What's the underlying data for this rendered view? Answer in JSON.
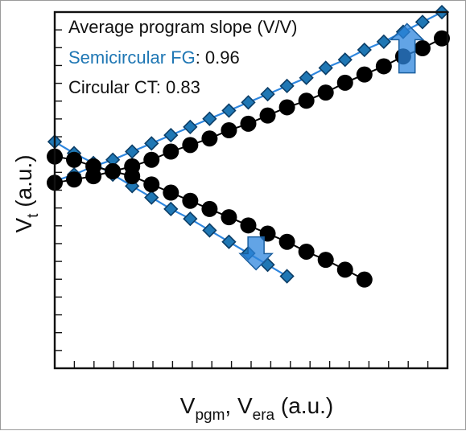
{
  "chart_data": {
    "type": "scatter",
    "x_range": [
      0,
      10
    ],
    "y_range": [
      0,
      10
    ],
    "annotation": {
      "title": "Average program slope (V/V)",
      "entries": [
        {
          "name": "Semicircular FG",
          "value": ": 0.96",
          "color": "#1f77b4"
        },
        {
          "name": "Circular CT",
          "value": ": 0.83",
          "color": "#111111"
        }
      ]
    },
    "ylabel": {
      "base": "V",
      "sub": "t",
      "rest": " (a.u.)"
    },
    "xlabel": {
      "base1": "V",
      "sub1": "pgm",
      "mid": ", V",
      "sub2": "era",
      "rest": " (a.u.)"
    },
    "series": [
      {
        "name": "Semicircular FG",
        "role": "program",
        "marker": "diamond",
        "color": "#1f77b4",
        "x": [
          0,
          0.5,
          1,
          1.5,
          2,
          2.5,
          3,
          3.5,
          4,
          4.5,
          5,
          5.5,
          6,
          6.5,
          7,
          7.5,
          8,
          8.5,
          9,
          9.5,
          10
        ],
        "y": [
          4.7,
          4.9,
          5.15,
          5.35,
          5.6,
          5.85,
          6.1,
          6.35,
          6.6,
          6.85,
          7.1,
          7.35,
          7.6,
          7.85,
          8.15,
          8.4,
          8.7,
          8.95,
          9.25,
          9.55,
          9.85
        ]
      },
      {
        "name": "Semicircular FG",
        "role": "erase",
        "marker": "diamond",
        "color": "#1f77b4",
        "x": [
          0,
          0.5,
          1,
          1.5,
          2,
          2.5,
          3,
          3.5,
          4,
          4.5,
          5,
          5.5,
          6
        ],
        "y": [
          5.9,
          5.55,
          5.25,
          4.9,
          4.55,
          4.2,
          3.85,
          3.55,
          3.2,
          2.85,
          2.5,
          2.15,
          1.8
        ]
      },
      {
        "name": "Circular CT",
        "role": "program",
        "marker": "circle",
        "color": "#000000",
        "x": [
          0,
          0.5,
          1,
          1.5,
          2,
          2.5,
          3,
          3.5,
          4,
          4.5,
          5,
          5.5,
          6,
          6.5,
          7,
          7.5,
          8,
          8.5,
          9,
          9.5,
          10
        ],
        "y": [
          4.65,
          4.75,
          4.85,
          5.0,
          5.15,
          5.35,
          5.6,
          5.8,
          6.0,
          6.25,
          6.45,
          6.7,
          6.95,
          7.15,
          7.4,
          7.7,
          7.95,
          8.2,
          8.5,
          8.75,
          9.05
        ]
      },
      {
        "name": "Circular CT",
        "role": "erase",
        "marker": "circle",
        "color": "#000000",
        "x": [
          0,
          0.5,
          1,
          1.5,
          2,
          2.5,
          3,
          3.5,
          4,
          4.5,
          5,
          5.5,
          6,
          6.5,
          7,
          7.5,
          8
        ],
        "y": [
          5.45,
          5.35,
          5.15,
          5.0,
          4.85,
          4.6,
          4.35,
          4.1,
          3.85,
          3.6,
          3.35,
          3.1,
          2.85,
          2.55,
          2.3,
          2.0,
          1.7
        ]
      }
    ],
    "arrows": [
      {
        "direction": "up",
        "x": 9.1,
        "y_from": 8.0,
        "y_to": 9.5,
        "color": "#2e86de"
      },
      {
        "direction": "down",
        "x": 5.2,
        "y_from": 3.0,
        "y_to": 2.0,
        "color": "#2e86de"
      }
    ],
    "grid": false,
    "ticks": "inward minor ticks, unlabeled"
  }
}
